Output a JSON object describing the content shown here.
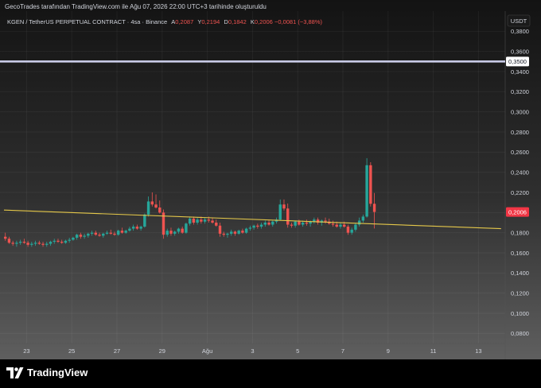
{
  "attribution": "GecoTrades tarafından TradingView.com ile Ağu 07, 2026 22:00 UTC+3 tarihinde oluşturuldu",
  "legend": {
    "symbol": "KGEN / TetherUS PERPETUAL CONTRACT · 4sa · Binance",
    "open_label": "A",
    "open_value": "0,2087",
    "high_label": "Y",
    "high_value": "0,2194",
    "low_label": "D",
    "low_value": "0,1842",
    "close_label": "K",
    "close_value": "0,2006",
    "change": "−0,0081 (−3,88%)"
  },
  "brand": {
    "name": "TradingView",
    "icon": "tradingview-logo-icon"
  },
  "colors": {
    "up": "#26a69a",
    "down": "#ef5350",
    "trendline": "#e5c84a",
    "level_line": "#c8cae6",
    "price_badge": "#f23645",
    "axis_text": "#d1d4dc"
  },
  "chart_data": {
    "type": "candlestick",
    "currency_label": "USDT",
    "ylim": [
      0.07,
      0.4
    ],
    "y_ticks": [
      "0,3800",
      "0,3600",
      "0,3400",
      "0,3200",
      "0,3000",
      "0,2800",
      "0,2600",
      "0,2400",
      "0,2200",
      "0,2000",
      "0,1800",
      "0,1600",
      "0,1400",
      "0,1200",
      "0,1000",
      "0,0800"
    ],
    "x_ticks": [
      "23",
      "25",
      "27",
      "29",
      "Ağu",
      "3",
      "5",
      "7",
      "9",
      "11",
      "13"
    ],
    "horizontal_level": {
      "value": 0.35,
      "label": "0,3500"
    },
    "last_price": {
      "value": 0.2006,
      "label": "0,2006"
    },
    "trendline": {
      "from": [
        "2026-07-22 00:00",
        0.2025
      ],
      "to": [
        "2026-08-13 00:00",
        0.184
      ]
    },
    "timeframe": "4h",
    "series_start": "2026-07-22 00:00",
    "ohlc": [
      [
        0.176,
        0.18,
        0.172,
        0.174
      ],
      [
        0.174,
        0.176,
        0.169,
        0.17
      ],
      [
        0.17,
        0.172,
        0.167,
        0.169
      ],
      [
        0.169,
        0.172,
        0.166,
        0.17
      ],
      [
        0.17,
        0.173,
        0.168,
        0.171
      ],
      [
        0.171,
        0.174,
        0.169,
        0.17
      ],
      [
        0.17,
        0.172,
        0.166,
        0.168
      ],
      [
        0.168,
        0.171,
        0.166,
        0.169
      ],
      [
        0.169,
        0.172,
        0.167,
        0.17
      ],
      [
        0.17,
        0.172,
        0.168,
        0.169
      ],
      [
        0.169,
        0.171,
        0.166,
        0.168
      ],
      [
        0.168,
        0.171,
        0.166,
        0.169
      ],
      [
        0.169,
        0.172,
        0.167,
        0.171
      ],
      [
        0.171,
        0.174,
        0.169,
        0.172
      ],
      [
        0.172,
        0.174,
        0.17,
        0.171
      ],
      [
        0.171,
        0.173,
        0.169,
        0.17
      ],
      [
        0.17,
        0.173,
        0.169,
        0.172
      ],
      [
        0.172,
        0.175,
        0.17,
        0.173
      ],
      [
        0.173,
        0.176,
        0.172,
        0.175
      ],
      [
        0.175,
        0.179,
        0.173,
        0.178
      ],
      [
        0.178,
        0.18,
        0.174,
        0.176
      ],
      [
        0.176,
        0.179,
        0.174,
        0.177
      ],
      [
        0.177,
        0.18,
        0.175,
        0.179
      ],
      [
        0.179,
        0.182,
        0.177,
        0.18
      ],
      [
        0.18,
        0.182,
        0.177,
        0.178
      ],
      [
        0.178,
        0.18,
        0.176,
        0.177
      ],
      [
        0.177,
        0.18,
        0.175,
        0.179
      ],
      [
        0.179,
        0.182,
        0.178,
        0.18
      ],
      [
        0.18,
        0.183,
        0.178,
        0.179
      ],
      [
        0.179,
        0.181,
        0.177,
        0.178
      ],
      [
        0.178,
        0.183,
        0.177,
        0.182
      ],
      [
        0.182,
        0.185,
        0.179,
        0.18
      ],
      [
        0.18,
        0.183,
        0.179,
        0.182
      ],
      [
        0.182,
        0.186,
        0.181,
        0.184
      ],
      [
        0.184,
        0.188,
        0.182,
        0.186
      ],
      [
        0.186,
        0.188,
        0.183,
        0.184
      ],
      [
        0.184,
        0.187,
        0.182,
        0.186
      ],
      [
        0.186,
        0.199,
        0.185,
        0.198
      ],
      [
        0.198,
        0.216,
        0.196,
        0.211
      ],
      [
        0.211,
        0.22,
        0.206,
        0.208
      ],
      [
        0.208,
        0.218,
        0.204,
        0.205
      ],
      [
        0.205,
        0.212,
        0.199,
        0.2
      ],
      [
        0.2,
        0.203,
        0.174,
        0.178
      ],
      [
        0.178,
        0.184,
        0.176,
        0.182
      ],
      [
        0.182,
        0.185,
        0.177,
        0.179
      ],
      [
        0.179,
        0.182,
        0.177,
        0.181
      ],
      [
        0.181,
        0.185,
        0.179,
        0.184
      ],
      [
        0.184,
        0.186,
        0.179,
        0.18
      ],
      [
        0.18,
        0.19,
        0.179,
        0.189
      ],
      [
        0.189,
        0.196,
        0.187,
        0.194
      ],
      [
        0.194,
        0.196,
        0.188,
        0.19
      ],
      [
        0.19,
        0.195,
        0.188,
        0.193
      ],
      [
        0.193,
        0.196,
        0.189,
        0.191
      ],
      [
        0.191,
        0.195,
        0.189,
        0.193
      ],
      [
        0.193,
        0.196,
        0.19,
        0.192
      ],
      [
        0.192,
        0.195,
        0.189,
        0.19
      ],
      [
        0.19,
        0.193,
        0.186,
        0.187
      ],
      [
        0.187,
        0.19,
        0.176,
        0.179
      ],
      [
        0.179,
        0.181,
        0.176,
        0.178
      ],
      [
        0.178,
        0.18,
        0.175,
        0.179
      ],
      [
        0.179,
        0.183,
        0.177,
        0.181
      ],
      [
        0.181,
        0.182,
        0.177,
        0.179
      ],
      [
        0.179,
        0.183,
        0.178,
        0.182
      ],
      [
        0.182,
        0.184,
        0.179,
        0.18
      ],
      [
        0.18,
        0.185,
        0.179,
        0.184
      ],
      [
        0.184,
        0.187,
        0.182,
        0.185
      ],
      [
        0.185,
        0.188,
        0.183,
        0.187
      ],
      [
        0.187,
        0.189,
        0.184,
        0.186
      ],
      [
        0.186,
        0.19,
        0.184,
        0.188
      ],
      [
        0.188,
        0.192,
        0.186,
        0.19
      ],
      [
        0.19,
        0.193,
        0.187,
        0.188
      ],
      [
        0.188,
        0.192,
        0.186,
        0.191
      ],
      [
        0.191,
        0.195,
        0.189,
        0.193
      ],
      [
        0.193,
        0.213,
        0.192,
        0.208
      ],
      [
        0.208,
        0.213,
        0.202,
        0.204
      ],
      [
        0.204,
        0.209,
        0.185,
        0.188
      ],
      [
        0.188,
        0.19,
        0.185,
        0.187
      ],
      [
        0.187,
        0.192,
        0.185,
        0.191
      ],
      [
        0.191,
        0.193,
        0.187,
        0.188
      ],
      [
        0.188,
        0.192,
        0.186,
        0.19
      ],
      [
        0.19,
        0.193,
        0.187,
        0.189
      ],
      [
        0.189,
        0.192,
        0.186,
        0.191
      ],
      [
        0.191,
        0.195,
        0.189,
        0.193
      ],
      [
        0.193,
        0.195,
        0.188,
        0.19
      ],
      [
        0.19,
        0.193,
        0.187,
        0.192
      ],
      [
        0.192,
        0.195,
        0.189,
        0.191
      ],
      [
        0.191,
        0.194,
        0.188,
        0.189
      ],
      [
        0.189,
        0.192,
        0.186,
        0.188
      ],
      [
        0.188,
        0.191,
        0.185,
        0.186
      ],
      [
        0.186,
        0.19,
        0.184,
        0.188
      ],
      [
        0.188,
        0.191,
        0.185,
        0.186
      ],
      [
        0.186,
        0.188,
        0.178,
        0.18
      ],
      [
        0.18,
        0.185,
        0.178,
        0.183
      ],
      [
        0.183,
        0.19,
        0.181,
        0.188
      ],
      [
        0.188,
        0.195,
        0.186,
        0.192
      ],
      [
        0.192,
        0.198,
        0.19,
        0.196
      ],
      [
        0.196,
        0.254,
        0.195,
        0.247
      ],
      [
        0.247,
        0.25,
        0.206,
        0.2087
      ],
      [
        0.2087,
        0.2194,
        0.1842,
        0.2006
      ]
    ]
  }
}
